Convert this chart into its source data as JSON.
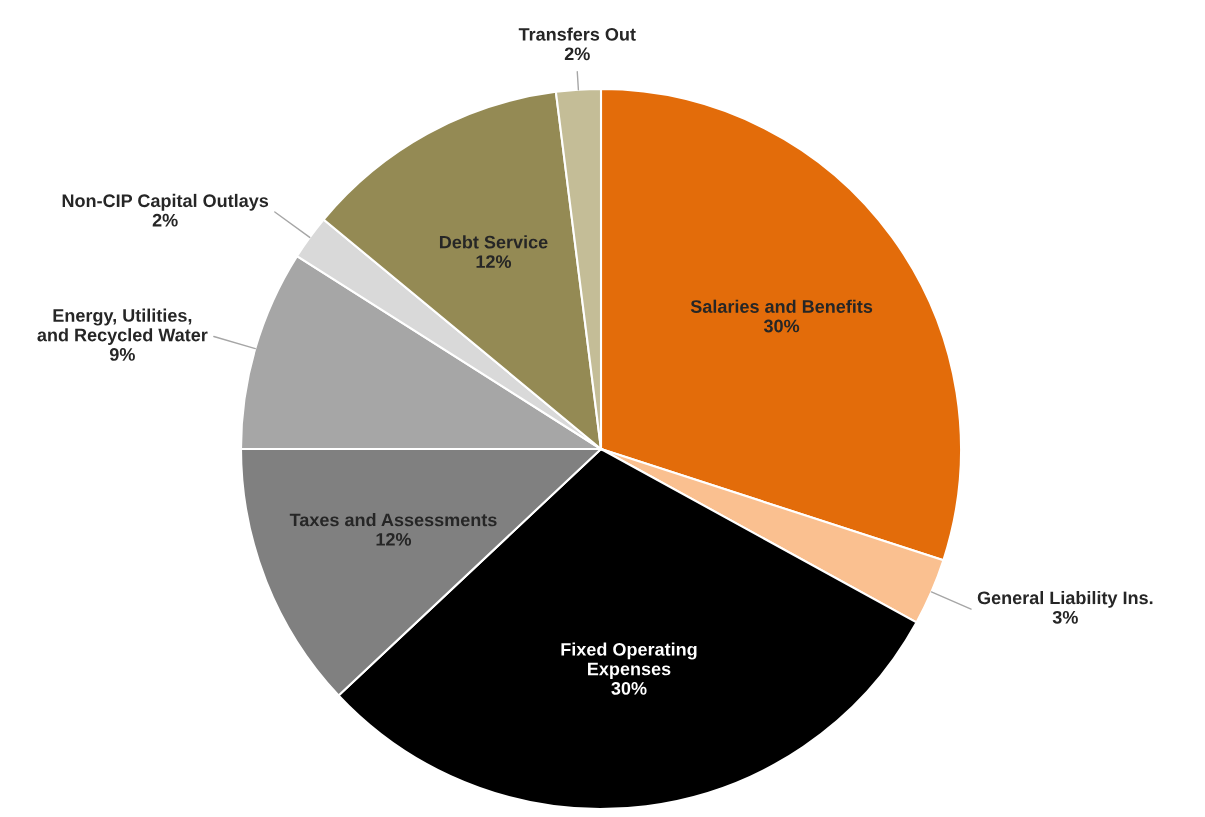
{
  "chart_data": {
    "type": "pie",
    "categories": [
      "Salaries and Benefits",
      "General Liability Ins.",
      "Fixed Operating Expenses",
      "Taxes and Assessments",
      "Energy, Utilities, and Recycled Water",
      "Non-CIP Capital Outlays",
      "Debt Service",
      "Transfers Out"
    ],
    "values": [
      30,
      3,
      30,
      12,
      9,
      2,
      12,
      2
    ],
    "colors": [
      "#e36c0a",
      "#fac090",
      "#000000",
      "#808080",
      "#a6a6a6",
      "#d9d9d9",
      "#948a54",
      "#c4bd97"
    ],
    "value_labels": [
      "30%",
      "3%",
      "30%",
      "12%",
      "9%",
      "2%",
      "12%",
      "2%"
    ],
    "legend": false
  }
}
